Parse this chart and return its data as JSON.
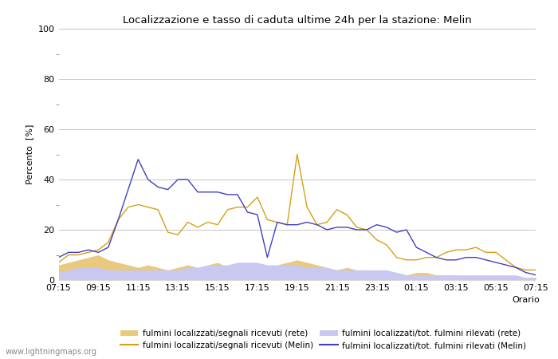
{
  "title": "Localizzazione e tasso di caduta ultime 24h per la stazione: Melin",
  "ylabel": "Percento  [%]",
  "xlabel": "Orario",
  "ylim": [
    0,
    100
  ],
  "yticks": [
    0,
    20,
    40,
    60,
    80,
    100
  ],
  "watermark": "www.lightningmaps.org",
  "x_labels": [
    "07:15",
    "09:15",
    "11:15",
    "13:15",
    "15:15",
    "17:15",
    "19:15",
    "21:15",
    "23:15",
    "01:15",
    "03:15",
    "05:15",
    "07:15"
  ],
  "color_rete_segnali": "#e8c97e",
  "color_melin_segnali": "#d4a017",
  "color_rete_tot": "#c8c8f0",
  "color_melin_tot": "#4040c0",
  "series_x": [
    0,
    1,
    2,
    3,
    4,
    5,
    6,
    7,
    8,
    9,
    10,
    11,
    12,
    13,
    14,
    15,
    16,
    17,
    18,
    19,
    20,
    21,
    22,
    23,
    24,
    25,
    26,
    27,
    28,
    29,
    30,
    31,
    32,
    33,
    34,
    35,
    36,
    37,
    38,
    39,
    40,
    41,
    42,
    43,
    44,
    45,
    46,
    47,
    48
  ],
  "rete_segnali_y": [
    6,
    7,
    8,
    9,
    10,
    8,
    7,
    6,
    5,
    6,
    5,
    4,
    5,
    6,
    5,
    6,
    7,
    5,
    6,
    5,
    6,
    5,
    6,
    7,
    8,
    7,
    6,
    5,
    4,
    5,
    4,
    4,
    3,
    3,
    3,
    2,
    3,
    3,
    2,
    2,
    2,
    1,
    1,
    1,
    1,
    1,
    1,
    1,
    1
  ],
  "melin_segnali_y": [
    7,
    10,
    10,
    11,
    12,
    15,
    24,
    29,
    30,
    29,
    28,
    19,
    18,
    23,
    21,
    23,
    22,
    28,
    29,
    29,
    33,
    24,
    23,
    22,
    50,
    29,
    22,
    23,
    28,
    26,
    21,
    20,
    16,
    14,
    9,
    8,
    8,
    9,
    9,
    11,
    12,
    12,
    13,
    11,
    11,
    8,
    5,
    4,
    4
  ],
  "rete_tot_y": [
    3,
    4,
    5,
    5,
    5,
    4,
    4,
    4,
    4,
    4,
    4,
    4,
    4,
    5,
    5,
    6,
    6,
    6,
    7,
    7,
    7,
    6,
    6,
    6,
    6,
    5,
    5,
    5,
    4,
    4,
    4,
    4,
    4,
    4,
    3,
    2,
    2,
    2,
    2,
    2,
    2,
    2,
    2,
    2,
    2,
    2,
    2,
    1,
    1
  ],
  "melin_tot_y": [
    9,
    11,
    11,
    12,
    11,
    13,
    24,
    36,
    48,
    40,
    37,
    36,
    40,
    40,
    35,
    35,
    35,
    34,
    34,
    27,
    26,
    9,
    23,
    22,
    22,
    23,
    22,
    20,
    21,
    21,
    20,
    20,
    22,
    21,
    19,
    20,
    13,
    11,
    9,
    8,
    8,
    9,
    9,
    8,
    7,
    6,
    5,
    3,
    2
  ]
}
